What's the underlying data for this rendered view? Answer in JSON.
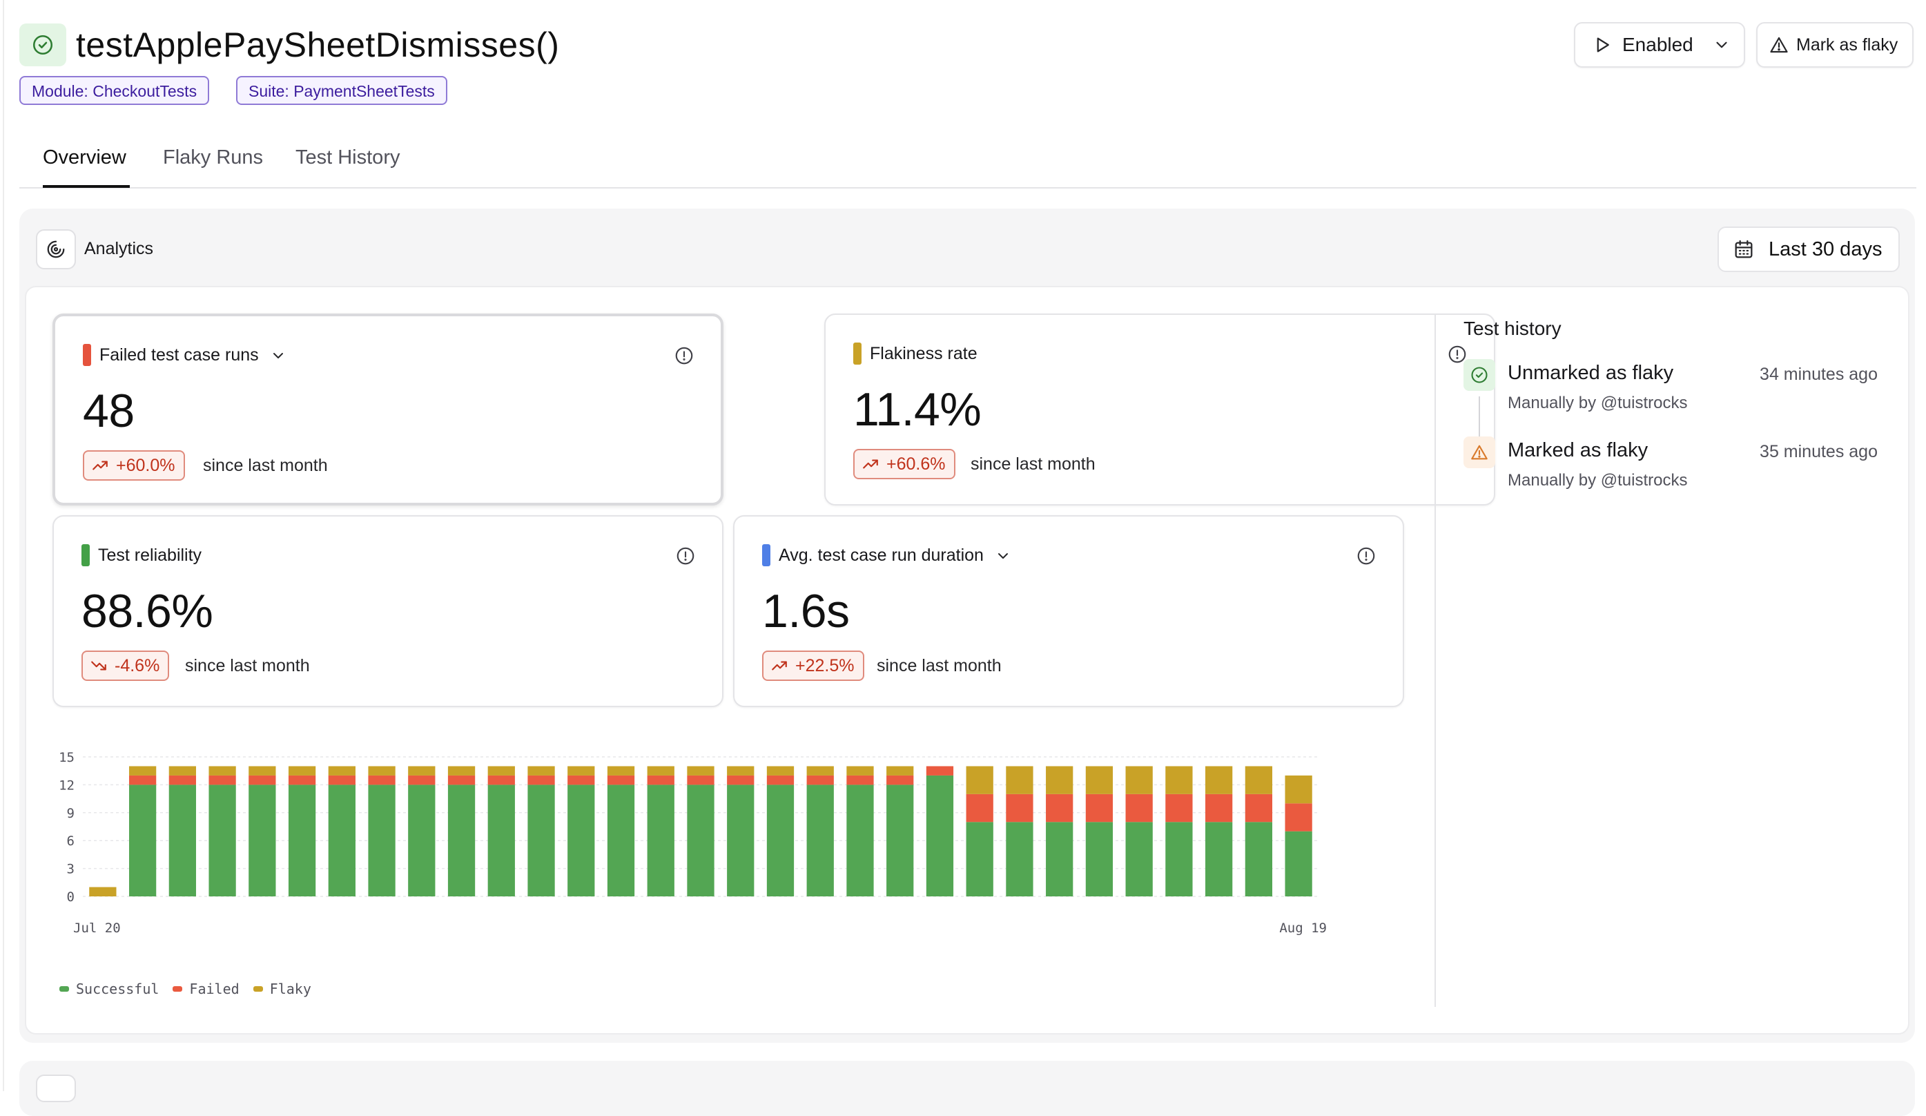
{
  "header": {
    "title": "testApplePaySheetDismisses()",
    "status": "passing",
    "badges": [
      {
        "label": "Module: CheckoutTests"
      },
      {
        "label": "Suite: PaymentSheetTests"
      }
    ],
    "enabled_button": {
      "label": "Enabled",
      "icon": "play-icon"
    },
    "flaky_button": {
      "label": "Mark as flaky",
      "icon": "warning-triangle-icon"
    }
  },
  "tabs": [
    {
      "label": "Overview",
      "active": true
    },
    {
      "label": "Flaky Runs",
      "active": false
    },
    {
      "label": "Test History",
      "active": false
    }
  ],
  "analytics": {
    "label": "Analytics",
    "date_range": "Last 30 days"
  },
  "metrics": [
    {
      "title": "Failed test case runs",
      "has_dropdown": true,
      "value": "48",
      "delta": "+60.0%",
      "trend": "up",
      "since": "since last month",
      "color": "#e5533d"
    },
    {
      "title": "Flakiness rate",
      "has_dropdown": false,
      "value": "11.4%",
      "delta": "+60.6%",
      "trend": "up",
      "since": "since last month",
      "color": "#c9a227"
    },
    {
      "title": "Test reliability",
      "has_dropdown": false,
      "value": "88.6%",
      "delta": "-4.6%",
      "trend": "down",
      "since": "since last month",
      "color": "#43a047"
    },
    {
      "title": "Avg. test case run duration",
      "has_dropdown": true,
      "value": "1.6s",
      "delta": "+22.5%",
      "trend": "up",
      "since": "since last month",
      "color": "#4f7fe6"
    }
  ],
  "chart_data": {
    "type": "bar",
    "stacked": true,
    "ylim": [
      0,
      15
    ],
    "yticks": [
      "15",
      "12",
      "9",
      "6",
      "3",
      "0"
    ],
    "x_labels": {
      "first": "Jul 20",
      "last": "Aug 19"
    },
    "categories": [
      "Jul 20",
      "Jul 21",
      "Jul 22",
      "Jul 23",
      "Jul 24",
      "Jul 25",
      "Jul 26",
      "Jul 27",
      "Jul 28",
      "Jul 29",
      "Jul 30",
      "Jul 31",
      "Aug 1",
      "Aug 2",
      "Aug 3",
      "Aug 4",
      "Aug 5",
      "Aug 6",
      "Aug 7",
      "Aug 8",
      "Aug 9",
      "Aug 10",
      "Aug 11",
      "Aug 12",
      "Aug 13",
      "Aug 14",
      "Aug 15",
      "Aug 16",
      "Aug 17",
      "Aug 18",
      "Aug 19"
    ],
    "series": [
      {
        "name": "Successful",
        "color": "#53a653",
        "values": [
          0,
          12,
          12,
          12,
          12,
          12,
          12,
          12,
          12,
          12,
          12,
          12,
          12,
          12,
          12,
          12,
          12,
          12,
          12,
          12,
          12,
          13,
          8,
          8,
          8,
          8,
          8,
          8,
          8,
          8,
          7
        ]
      },
      {
        "name": "Failed",
        "color": "#ea5a3f",
        "values": [
          0,
          1,
          1,
          1,
          1,
          1,
          1,
          1,
          1,
          1,
          1,
          1,
          1,
          1,
          1,
          1,
          1,
          1,
          1,
          1,
          1,
          1,
          3,
          3,
          3,
          3,
          3,
          3,
          3,
          3,
          3
        ]
      },
      {
        "name": "Flaky",
        "color": "#c9a227",
        "values": [
          1,
          1,
          1,
          1,
          1,
          1,
          1,
          1,
          1,
          1,
          1,
          1,
          1,
          1,
          1,
          1,
          1,
          1,
          1,
          1,
          1,
          0,
          3,
          3,
          3,
          3,
          3,
          3,
          3,
          3,
          3
        ]
      }
    ],
    "grid": true,
    "legend_position": "bottom-left"
  },
  "history": {
    "title": "Test history",
    "events": [
      {
        "label": "Unmarked as flaky",
        "by": "Manually by @tuistrocks",
        "time": "34 minutes ago",
        "icon": "check-circle-icon"
      },
      {
        "label": "Marked as flaky",
        "by": "Manually by @tuistrocks",
        "time": "35 minutes ago",
        "icon": "warning-triangle-icon"
      }
    ]
  }
}
